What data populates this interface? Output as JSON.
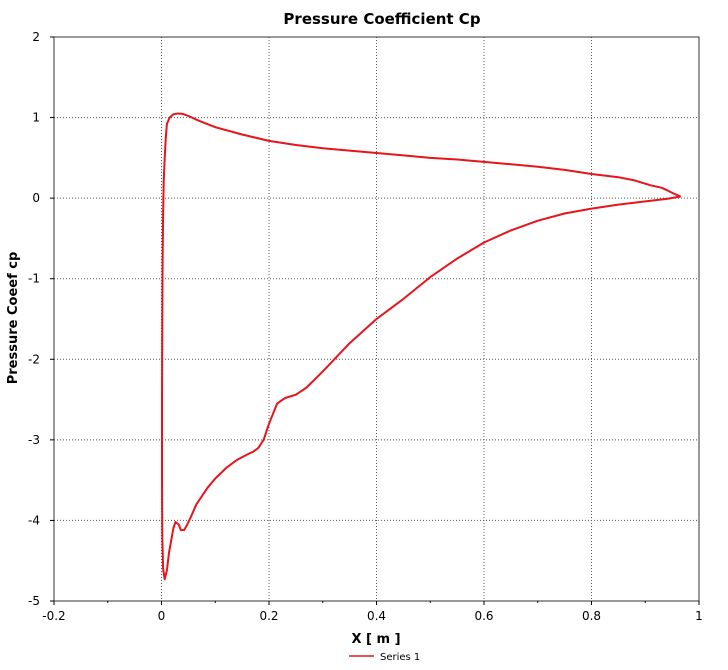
{
  "chart_data": {
    "type": "line",
    "title": "Pressure Coefficient Cp",
    "xlabel": "X [ m ]",
    "ylabel": "Pressure Coeef cp",
    "xlim": [
      -0.2,
      1.0
    ],
    "ylim": [
      -5,
      2
    ],
    "x_ticks": [
      -0.2,
      0,
      0.2,
      0.4,
      0.6,
      0.8,
      1
    ],
    "y_ticks": [
      2,
      1,
      0,
      -1,
      -2,
      -3,
      -4,
      -5
    ],
    "x_tick_labels": [
      "-0.2",
      "0",
      "0.2",
      "0.4",
      "0.6",
      "0.8",
      "1"
    ],
    "y_tick_labels": [
      "2",
      "1",
      "0",
      "-1",
      "-2",
      "-3",
      "-4",
      "-5"
    ],
    "grid": true,
    "legend_position": "bottom-center",
    "series": [
      {
        "name": "Series 1",
        "color": "#e8141c",
        "points": [
          [
            0.966,
            0.02
          ],
          [
            0.955,
            0.05
          ],
          [
            0.94,
            0.1
          ],
          [
            0.93,
            0.13
          ],
          [
            0.91,
            0.16
          ],
          [
            0.88,
            0.22
          ],
          [
            0.85,
            0.26
          ],
          [
            0.8,
            0.3
          ],
          [
            0.75,
            0.35
          ],
          [
            0.7,
            0.39
          ],
          [
            0.65,
            0.42
          ],
          [
            0.6,
            0.45
          ],
          [
            0.55,
            0.48
          ],
          [
            0.5,
            0.5
          ],
          [
            0.45,
            0.53
          ],
          [
            0.4,
            0.56
          ],
          [
            0.35,
            0.59
          ],
          [
            0.3,
            0.62
          ],
          [
            0.25,
            0.66
          ],
          [
            0.2,
            0.71
          ],
          [
            0.15,
            0.79
          ],
          [
            0.1,
            0.88
          ],
          [
            0.07,
            0.96
          ],
          [
            0.05,
            1.02
          ],
          [
            0.04,
            1.045
          ],
          [
            0.03,
            1.05
          ],
          [
            0.022,
            1.04
          ],
          [
            0.015,
            1.0
          ],
          [
            0.01,
            0.92
          ],
          [
            0.008,
            0.75
          ],
          [
            0.006,
            0.5
          ],
          [
            0.004,
            0.2
          ],
          [
            0.003,
            -0.2
          ],
          [
            0.002,
            -0.8
          ],
          [
            0.0015,
            -1.5
          ],
          [
            0.001,
            -2.5
          ],
          [
            0.001,
            -3.5
          ],
          [
            0.0015,
            -4.2
          ],
          [
            0.003,
            -4.6
          ],
          [
            0.006,
            -4.73
          ],
          [
            0.01,
            -4.62
          ],
          [
            0.014,
            -4.4
          ],
          [
            0.018,
            -4.25
          ],
          [
            0.022,
            -4.1
          ],
          [
            0.026,
            -4.02
          ],
          [
            0.032,
            -4.05
          ],
          [
            0.036,
            -4.12
          ],
          [
            0.042,
            -4.12
          ],
          [
            0.048,
            -4.05
          ],
          [
            0.055,
            -3.95
          ],
          [
            0.065,
            -3.8
          ],
          [
            0.075,
            -3.7
          ],
          [
            0.085,
            -3.6
          ],
          [
            0.1,
            -3.48
          ],
          [
            0.12,
            -3.35
          ],
          [
            0.14,
            -3.25
          ],
          [
            0.16,
            -3.18
          ],
          [
            0.17,
            -3.15
          ],
          [
            0.18,
            -3.1
          ],
          [
            0.19,
            -3.0
          ],
          [
            0.2,
            -2.8
          ],
          [
            0.215,
            -2.55
          ],
          [
            0.23,
            -2.48
          ],
          [
            0.25,
            -2.44
          ],
          [
            0.27,
            -2.35
          ],
          [
            0.3,
            -2.15
          ],
          [
            0.35,
            -1.8
          ],
          [
            0.4,
            -1.5
          ],
          [
            0.45,
            -1.25
          ],
          [
            0.5,
            -0.98
          ],
          [
            0.55,
            -0.75
          ],
          [
            0.6,
            -0.55
          ],
          [
            0.65,
            -0.4
          ],
          [
            0.7,
            -0.28
          ],
          [
            0.75,
            -0.19
          ],
          [
            0.8,
            -0.13
          ],
          [
            0.85,
            -0.08
          ],
          [
            0.9,
            -0.04
          ],
          [
            0.94,
            -0.01
          ],
          [
            0.966,
            0.02
          ]
        ]
      }
    ]
  }
}
